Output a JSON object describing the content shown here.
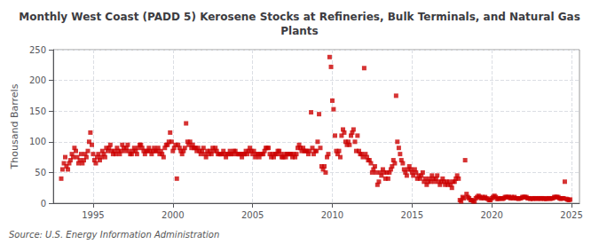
{
  "chart_data": {
    "type": "scatter",
    "title": "Monthly West Coast (PADD 5) Kerosene Stocks at Refineries, Bulk Terminals, and Natural Gas\nPlants",
    "ylabel": "Thousand Barrels",
    "annotation": "Source: U.S. Energy Information Administration",
    "color": "#cc0000",
    "marker": "square",
    "grid": true,
    "xlim": [
      1992.5,
      2025.5
    ],
    "ylim": [
      0,
      250
    ],
    "xticks": [
      1995,
      2000,
      2005,
      2010,
      2015,
      2020,
      2025
    ],
    "yticks": [
      0,
      50,
      100,
      150,
      200,
      250
    ],
    "x": [
      1993.0,
      1993.08,
      1993.17,
      1993.25,
      1993.33,
      1993.42,
      1993.5,
      1993.58,
      1993.67,
      1993.75,
      1993.83,
      1993.92,
      1994.0,
      1994.08,
      1994.17,
      1994.25,
      1994.33,
      1994.42,
      1994.5,
      1994.58,
      1994.67,
      1994.75,
      1994.83,
      1994.92,
      1995.0,
      1995.08,
      1995.17,
      1995.25,
      1995.33,
      1995.42,
      1995.5,
      1995.58,
      1995.67,
      1995.75,
      1995.83,
      1995.92,
      1996.0,
      1996.08,
      1996.17,
      1996.25,
      1996.33,
      1996.42,
      1996.5,
      1996.58,
      1996.67,
      1996.75,
      1996.83,
      1996.92,
      1997.0,
      1997.08,
      1997.17,
      1997.25,
      1997.33,
      1997.42,
      1997.5,
      1997.58,
      1997.67,
      1997.75,
      1997.83,
      1997.92,
      1998.0,
      1998.08,
      1998.17,
      1998.25,
      1998.33,
      1998.42,
      1998.5,
      1998.58,
      1998.67,
      1998.75,
      1998.83,
      1998.92,
      1999.0,
      1999.08,
      1999.17,
      1999.25,
      1999.33,
      1999.42,
      1999.5,
      1999.58,
      1999.67,
      1999.75,
      1999.83,
      1999.92,
      2000.0,
      2000.08,
      2000.17,
      2000.25,
      2000.33,
      2000.42,
      2000.5,
      2000.58,
      2000.67,
      2000.75,
      2000.83,
      2000.92,
      2001.0,
      2001.08,
      2001.17,
      2001.25,
      2001.33,
      2001.42,
      2001.5,
      2001.58,
      2001.67,
      2001.75,
      2001.83,
      2001.92,
      2002.0,
      2002.08,
      2002.17,
      2002.25,
      2002.33,
      2002.42,
      2002.5,
      2002.58,
      2002.67,
      2002.75,
      2002.83,
      2002.92,
      2003.0,
      2003.08,
      2003.17,
      2003.25,
      2003.33,
      2003.42,
      2003.5,
      2003.58,
      2003.67,
      2003.75,
      2003.83,
      2003.92,
      2004.0,
      2004.08,
      2004.17,
      2004.25,
      2004.33,
      2004.42,
      2004.5,
      2004.58,
      2004.67,
      2004.75,
      2004.83,
      2004.92,
      2005.0,
      2005.08,
      2005.17,
      2005.25,
      2005.33,
      2005.42,
      2005.5,
      2005.58,
      2005.67,
      2005.75,
      2005.83,
      2005.92,
      2006.0,
      2006.08,
      2006.17,
      2006.25,
      2006.33,
      2006.42,
      2006.5,
      2006.58,
      2006.67,
      2006.75,
      2006.83,
      2006.92,
      2007.0,
      2007.08,
      2007.17,
      2007.25,
      2007.33,
      2007.42,
      2007.5,
      2007.58,
      2007.67,
      2007.75,
      2007.83,
      2007.92,
      2008.0,
      2008.08,
      2008.17,
      2008.25,
      2008.33,
      2008.42,
      2008.5,
      2008.58,
      2008.67,
      2008.75,
      2008.83,
      2008.92,
      2009.0,
      2009.08,
      2009.17,
      2009.25,
      2009.33,
      2009.42,
      2009.5,
      2009.58,
      2009.67,
      2009.75,
      2009.83,
      2009.92,
      2010.0,
      2010.08,
      2010.17,
      2010.25,
      2010.33,
      2010.42,
      2010.5,
      2010.58,
      2010.67,
      2010.75,
      2010.83,
      2010.92,
      2011.0,
      2011.08,
      2011.17,
      2011.25,
      2011.33,
      2011.42,
      2011.5,
      2011.58,
      2011.67,
      2011.75,
      2011.83,
      2011.92,
      2012.0,
      2012.08,
      2012.17,
      2012.25,
      2012.33,
      2012.42,
      2012.5,
      2012.58,
      2012.67,
      2012.75,
      2012.83,
      2012.92,
      2013.0,
      2013.08,
      2013.17,
      2013.25,
      2013.33,
      2013.42,
      2013.5,
      2013.58,
      2013.67,
      2013.75,
      2013.83,
      2013.92,
      2014.0,
      2014.08,
      2014.17,
      2014.25,
      2014.33,
      2014.42,
      2014.5,
      2014.58,
      2014.67,
      2014.75,
      2014.83,
      2014.92,
      2015.0,
      2015.08,
      2015.17,
      2015.25,
      2015.33,
      2015.42,
      2015.5,
      2015.58,
      2015.67,
      2015.75,
      2015.83,
      2015.92,
      2016.0,
      2016.08,
      2016.17,
      2016.25,
      2016.33,
      2016.42,
      2016.5,
      2016.58,
      2016.67,
      2016.75,
      2016.83,
      2016.92,
      2017.0,
      2017.08,
      2017.17,
      2017.25,
      2017.33,
      2017.42,
      2017.5,
      2017.58,
      2017.67,
      2017.75,
      2017.83,
      2017.92,
      2018.0,
      2018.08,
      2018.17,
      2018.25,
      2018.33,
      2018.42,
      2018.5,
      2018.58,
      2018.67,
      2018.75,
      2018.83,
      2018.92,
      2019.0,
      2019.08,
      2019.17,
      2019.25,
      2019.33,
      2019.42,
      2019.5,
      2019.58,
      2019.67,
      2019.75,
      2019.83,
      2019.92,
      2020.0,
      2020.08,
      2020.17,
      2020.25,
      2020.33,
      2020.42,
      2020.5,
      2020.58,
      2020.67,
      2020.75,
      2020.83,
      2020.92,
      2021.0,
      2021.08,
      2021.17,
      2021.25,
      2021.33,
      2021.42,
      2021.5,
      2021.58,
      2021.67,
      2021.75,
      2021.83,
      2021.92,
      2022.0,
      2022.08,
      2022.17,
      2022.25,
      2022.33,
      2022.42,
      2022.5,
      2022.58,
      2022.67,
      2022.75,
      2022.83,
      2022.92,
      2023.0,
      2023.08,
      2023.17,
      2023.25,
      2023.33,
      2023.42,
      2023.5,
      2023.58,
      2023.67,
      2023.75,
      2023.83,
      2023.92,
      2024.0,
      2024.08,
      2024.17,
      2024.25,
      2024.33,
      2024.42,
      2024.5,
      2024.58,
      2024.67,
      2024.75,
      2024.83,
      2024.92
    ],
    "values": [
      40,
      55,
      65,
      75,
      60,
      55,
      65,
      70,
      80,
      75,
      90,
      85,
      75,
      65,
      70,
      80,
      65,
      70,
      80,
      75,
      85,
      100,
      115,
      95,
      80,
      70,
      65,
      75,
      80,
      70,
      75,
      85,
      80,
      75,
      90,
      85,
      90,
      95,
      85,
      80,
      85,
      80,
      90,
      85,
      80,
      85,
      95,
      90,
      85,
      90,
      95,
      85,
      80,
      80,
      85,
      90,
      85,
      80,
      90,
      95,
      95,
      90,
      85,
      80,
      85,
      85,
      90,
      85,
      80,
      85,
      90,
      85,
      85,
      90,
      80,
      85,
      80,
      75,
      90,
      95,
      95,
      100,
      115,
      100,
      85,
      90,
      95,
      40,
      95,
      90,
      85,
      80,
      85,
      90,
      130,
      100,
      95,
      100,
      90,
      95,
      90,
      90,
      85,
      90,
      85,
      80,
      85,
      90,
      80,
      75,
      85,
      80,
      85,
      80,
      90,
      85,
      90,
      85,
      80,
      80,
      80,
      80,
      85,
      80,
      75,
      80,
      80,
      85,
      80,
      80,
      85,
      85,
      80,
      80,
      80,
      80,
      75,
      80,
      80,
      85,
      80,
      85,
      90,
      85,
      80,
      85,
      75,
      80,
      80,
      75,
      80,
      80,
      80,
      85,
      90,
      90,
      90,
      80,
      75,
      80,
      75,
      80,
      80,
      85,
      85,
      80,
      75,
      75,
      80,
      75,
      80,
      80,
      80,
      80,
      75,
      80,
      75,
      80,
      90,
      95,
      90,
      85,
      90,
      85,
      85,
      85,
      80,
      85,
      148,
      90,
      80,
      85,
      85,
      100,
      145,
      90,
      60,
      55,
      60,
      50,
      75,
      80,
      238,
      222,
      167,
      153,
      110,
      85,
      80,
      85,
      75,
      110,
      120,
      115,
      100,
      95,
      100,
      95,
      110,
      115,
      120,
      100,
      85,
      110,
      85,
      80,
      80,
      75,
      220,
      80,
      75,
      70,
      70,
      65,
      50,
      55,
      60,
      50,
      30,
      35,
      50,
      45,
      55,
      50,
      40,
      50,
      40,
      50,
      55,
      60,
      70,
      65,
      175,
      100,
      90,
      80,
      70,
      65,
      55,
      50,
      45,
      55,
      60,
      55,
      50,
      45,
      55,
      50,
      40,
      45,
      40,
      45,
      50,
      35,
      40,
      30,
      35,
      40,
      35,
      45,
      40,
      35,
      40,
      45,
      35,
      30,
      35,
      40,
      35,
      30,
      35,
      30,
      35,
      30,
      25,
      35,
      35,
      40,
      45,
      40,
      5,
      3,
      10,
      8,
      70,
      15,
      10,
      8,
      5,
      5,
      3,
      3,
      8,
      10,
      12,
      10,
      8,
      10,
      8,
      10,
      8,
      7,
      5,
      5,
      8,
      10,
      12,
      10,
      7,
      7,
      8,
      8,
      7,
      8,
      10,
      10,
      10,
      10,
      8,
      10,
      8,
      10,
      8,
      8,
      7,
      8,
      8,
      10,
      10,
      10,
      10,
      8,
      8,
      7,
      8,
      7,
      8,
      8,
      7,
      8,
      8,
      7,
      8,
      8,
      7,
      7,
      8,
      8,
      7,
      8,
      8,
      10,
      10,
      10,
      10,
      8,
      7,
      8,
      8,
      35,
      7,
      6,
      5,
      6
    ]
  }
}
